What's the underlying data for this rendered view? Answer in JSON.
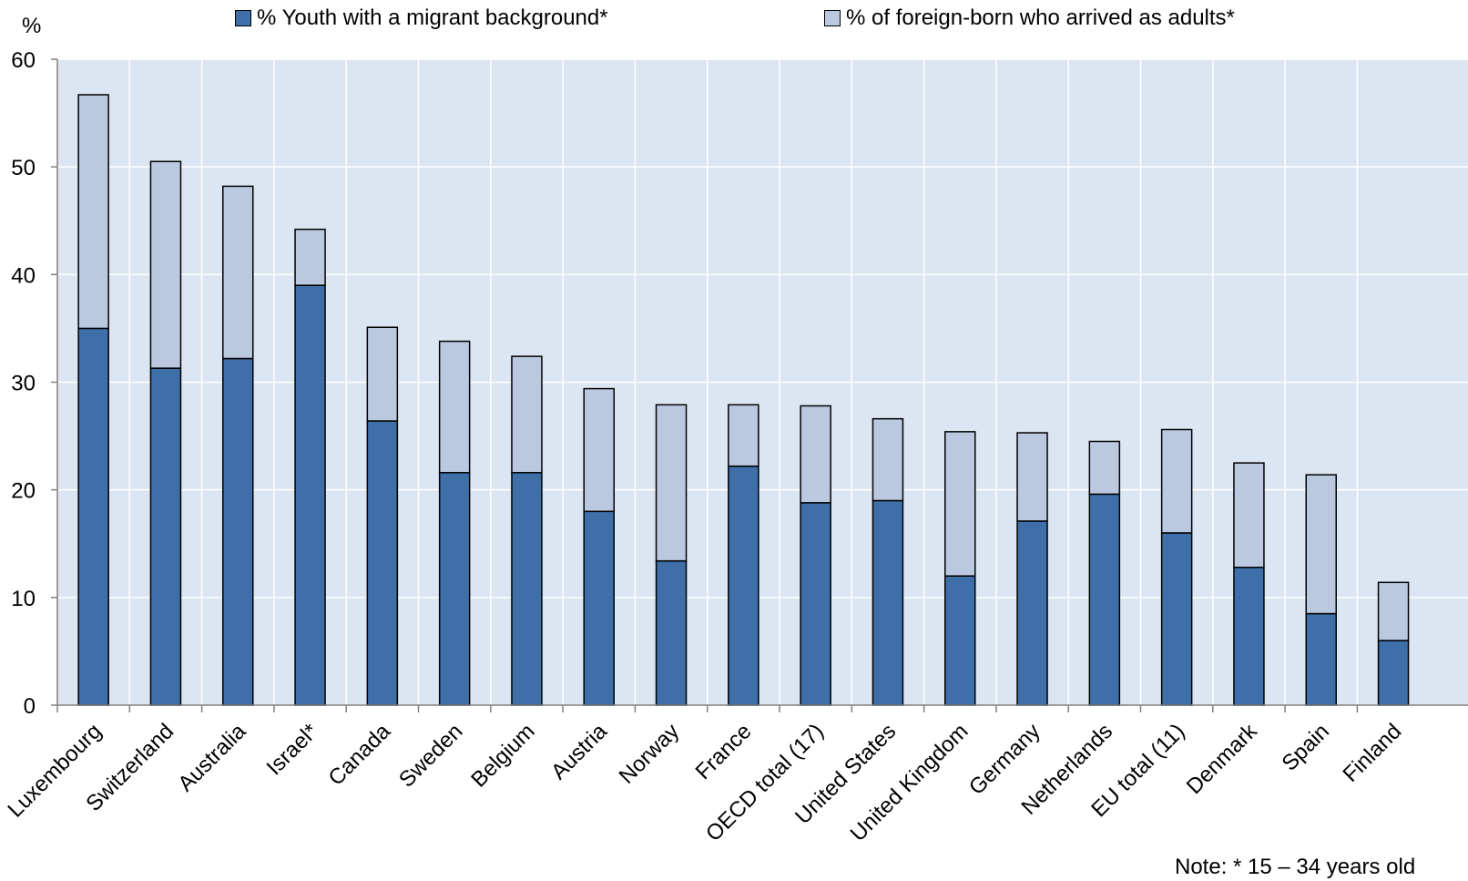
{
  "chart_data": {
    "type": "bar",
    "stacked": true,
    "ylabel": "%",
    "ylim": [
      0,
      60
    ],
    "yticks": [
      0,
      10,
      20,
      30,
      40,
      50,
      60
    ],
    "grid": true,
    "legend_position": "top",
    "categories": [
      "Luxembourg",
      "Switzerland",
      "Australia",
      "Israel*",
      "Canada",
      "Sweden",
      "Belgium",
      "Austria",
      "Norway",
      "France",
      "OECD total (17)",
      "United States",
      "United Kingdom",
      "Germany",
      "Netherlands",
      "EU total (11)",
      "Denmark",
      "Spain",
      "Finland"
    ],
    "series": [
      {
        "name": "% Youth with a migrant background*",
        "color": "#3e6fa8",
        "values": [
          35.0,
          31.3,
          32.2,
          39.0,
          26.4,
          21.6,
          21.6,
          18.0,
          13.4,
          22.2,
          18.8,
          19.0,
          12.0,
          17.1,
          19.6,
          16.0,
          12.8,
          8.5,
          6.0
        ]
      },
      {
        "name": "% of foreign-born who arrived as adults*",
        "color": "#bac8e0",
        "values": [
          21.7,
          19.2,
          16.0,
          5.2,
          8.7,
          12.2,
          10.8,
          11.4,
          14.5,
          5.7,
          9.0,
          7.6,
          13.4,
          8.2,
          4.9,
          9.6,
          9.7,
          12.9,
          5.4
        ]
      }
    ]
  },
  "legend": {
    "item1": "% Youth with a migrant background*",
    "item2": "% of foreign-born who arrived as adults*"
  },
  "note": "Note: * 15 – 34 years old",
  "colors": {
    "plot_background": "#dce6f2",
    "gridline": "#ffffff",
    "axis": "#808080"
  }
}
